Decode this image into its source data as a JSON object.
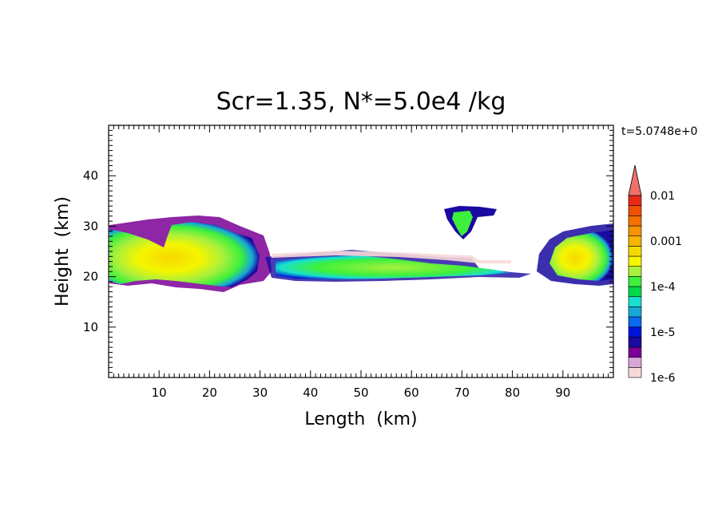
{
  "title": "Scr=1.35, N*=5.0e4 /kg",
  "time_label": "t=5.0748e+0",
  "chart_data": {
    "type": "heatmap",
    "xlabel": "Length  (km)",
    "ylabel": "Height  (km)",
    "xlim": [
      0,
      100
    ],
    "ylim": [
      0,
      50
    ],
    "x_ticks": [
      10,
      20,
      30,
      40,
      50,
      60,
      70,
      80,
      90
    ],
    "y_ticks": [
      10,
      20,
      30,
      40
    ],
    "grid": false,
    "colorbar": {
      "labels": [
        "0.01",
        "0.001",
        "1e-4",
        "1e-5",
        "1e-6"
      ],
      "scale": "log",
      "range": [
        1e-06,
        0.01
      ],
      "extend": "max",
      "colors": [
        "#f7d9d9",
        "#d7a6d7",
        "#7a0096",
        "#1a0aa0",
        "#0014d8",
        "#0a6af0",
        "#16a8d6",
        "#18e0d0",
        "#00d84a",
        "#3cf03c",
        "#a8f03c",
        "#f5f500",
        "#f5d800",
        "#f5b400",
        "#f59400",
        "#f57000",
        "#f05000",
        "#e82a1a",
        "#f0706a"
      ]
    },
    "regions": [
      {
        "name": "left layer",
        "x": [
          0,
          33
        ],
        "y": [
          18,
          32
        ],
        "peak": 0.001
      },
      {
        "name": "middle thin layer",
        "x": [
          33,
          82
        ],
        "y": [
          20,
          25
        ],
        "peak": 0.0003
      },
      {
        "name": "isolated cloud",
        "x": [
          66,
          77
        ],
        "y": [
          28,
          34
        ],
        "peak": 0.0003
      },
      {
        "name": "right layer",
        "x": [
          84,
          100
        ],
        "y": [
          18,
          31
        ],
        "peak": 0.001
      }
    ]
  }
}
